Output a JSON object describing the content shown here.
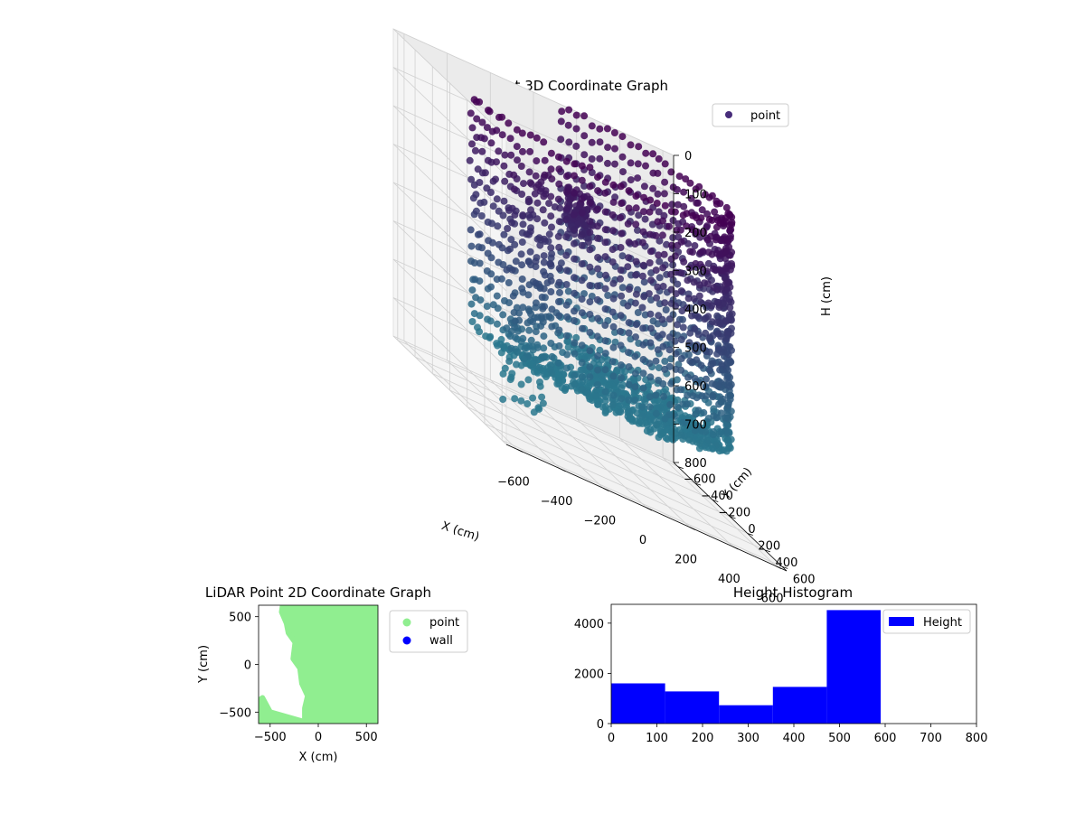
{
  "chart_data": [
    {
      "type": "scatter",
      "projection": "3d",
      "title": "LiDAR Point 3D Coordinate Graph",
      "xlabel": "X (cm)",
      "ylabel": "Y (cm)",
      "zlabel": "H (cm)",
      "xlim": [
        -650,
        650
      ],
      "ylim": [
        -650,
        650
      ],
      "zlim": [
        0,
        800
      ],
      "z_inverted": true,
      "xticks": [
        "−600",
        "−400",
        "−200",
        "0",
        "200",
        "400",
        "600"
      ],
      "yticks": [
        "−600",
        "−400",
        "−200",
        "0",
        "200",
        "400",
        "600"
      ],
      "zticks": [
        "0",
        "100",
        "200",
        "300",
        "400",
        "500",
        "600",
        "700",
        "800"
      ],
      "grid": true,
      "legend": {
        "position": "top-right",
        "entries": [
          {
            "label": "point",
            "color": "#472c7a"
          }
        ]
      },
      "colormap": "viridis",
      "colormap_range": [
        "#440154",
        "#2a788e"
      ],
      "structure": {
        "ring_radius": 600,
        "ring_arc_degrees": [
          -80,
          170
        ],
        "ring_height_range": [
          0,
          600
        ],
        "floor_height": 600,
        "floor_extent_degrees": [
          -80,
          170
        ],
        "cluster_near": {
          "x": -150,
          "y": 250,
          "h_range": [
            100,
            220
          ]
        },
        "sparse_arm": {
          "x_range": [
            -650,
            -200
          ],
          "y_range": [
            150,
            650
          ],
          "h_range": [
            100,
            700
          ]
        }
      }
    },
    {
      "type": "scatter",
      "title": "LiDAR Point 2D Coordinate Graph",
      "xlabel": "X (cm)",
      "ylabel": "Y (cm)",
      "xlim": [
        -620,
        620
      ],
      "ylim": [
        -620,
        620
      ],
      "xticks": [
        "−500",
        "0",
        "500"
      ],
      "yticks": [
        "−500",
        "0",
        "500"
      ],
      "legend": {
        "position": "outside-right",
        "entries": [
          {
            "label": "point",
            "color": "#90ee90"
          },
          {
            "label": "wall",
            "color": "#0000ff"
          }
        ]
      },
      "point_region_boundary": [
        [
          -370,
          620
        ],
        [
          -380,
          550
        ],
        [
          -330,
          430
        ],
        [
          -310,
          330
        ],
        [
          -240,
          230
        ],
        [
          -260,
          60
        ],
        [
          -190,
          -40
        ],
        [
          -170,
          -200
        ],
        [
          -110,
          -330
        ],
        [
          -140,
          -460
        ],
        [
          -140,
          -620
        ]
      ],
      "corner_blob": {
        "x_range": [
          -620,
          -150
        ],
        "y_range": [
          -620,
          -380
        ]
      }
    },
    {
      "type": "bar",
      "subtype": "histogram",
      "title": "Height Histogram",
      "xlabel": "",
      "ylabel": "",
      "bin_edges": [
        0,
        118,
        236,
        354,
        472,
        590
      ],
      "values": [
        1600,
        1280,
        730,
        1460,
        4520
      ],
      "xlim": [
        0,
        800
      ],
      "ylim": [
        0,
        4750
      ],
      "xticks": [
        "0",
        "100",
        "200",
        "300",
        "400",
        "500",
        "600",
        "700",
        "800"
      ],
      "yticks": [
        "0",
        "2000",
        "4000"
      ],
      "color": "#0000ff",
      "legend": {
        "position": "top-right",
        "entries": [
          {
            "label": "Height",
            "color": "#0000ff"
          }
        ]
      }
    }
  ]
}
